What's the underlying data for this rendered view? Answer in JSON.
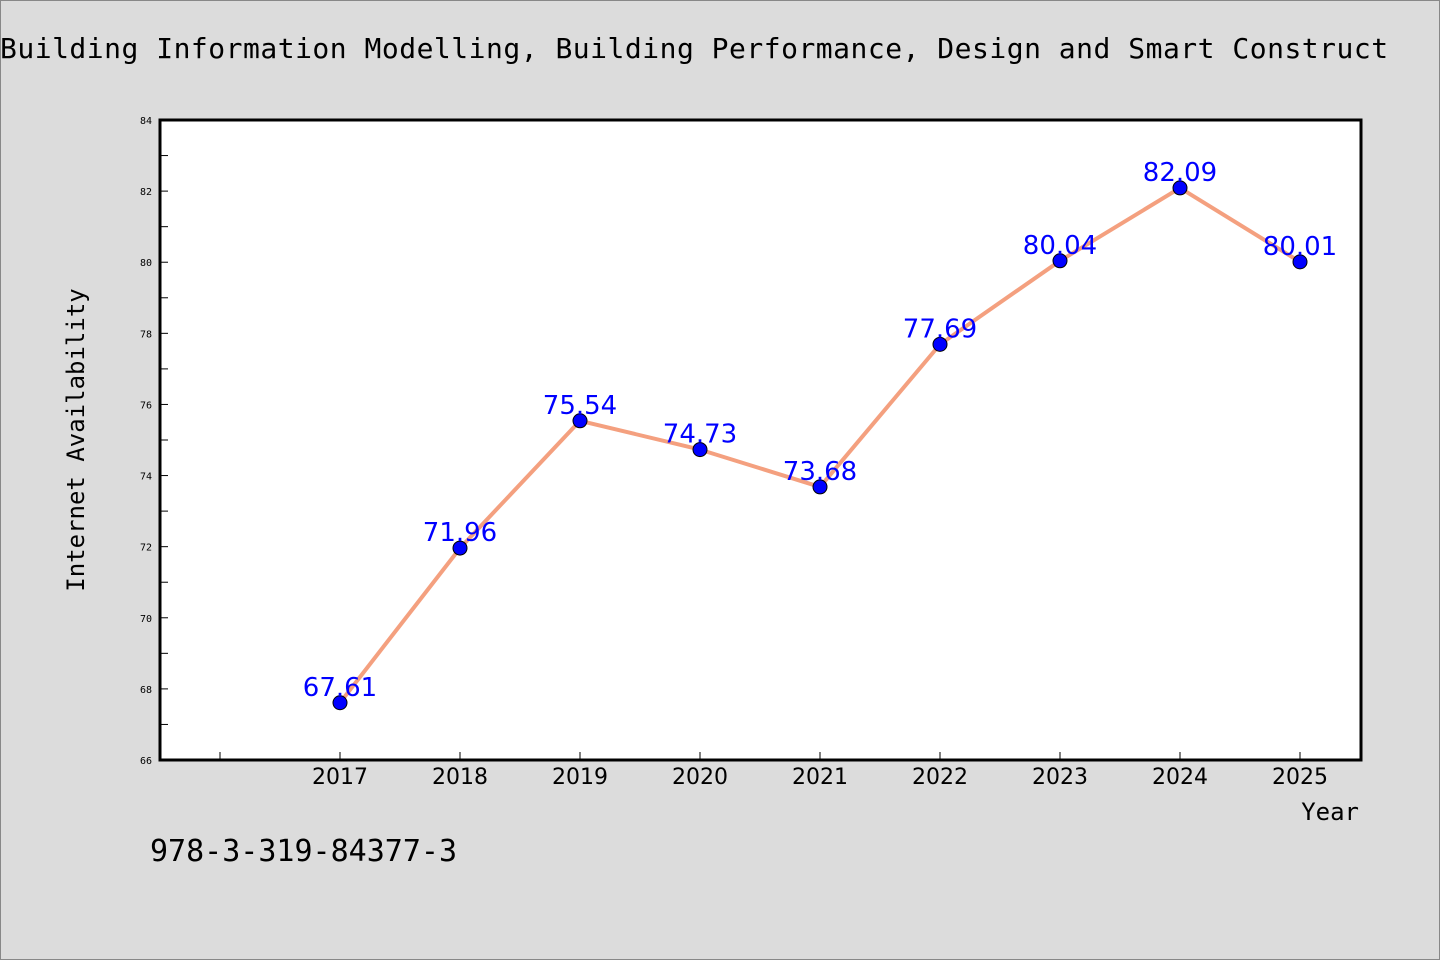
{
  "chart_data": {
    "type": "line",
    "title": "Building Information Modelling, Building Performance, Design and Smart Construct",
    "xlabel": "Year",
    "ylabel": "Internet Availability",
    "categories": [
      "2017",
      "2018",
      "2019",
      "2020",
      "2021",
      "2022",
      "2023",
      "2024",
      "2025"
    ],
    "series": [
      {
        "values": [
          67.61,
          71.96,
          75.54,
          74.73,
          73.68,
          77.69,
          80.04,
          82.09,
          80.01
        ],
        "data_labels": [
          "67.61",
          "71.96",
          "75.54",
          "74.73",
          "73.68",
          "77.69",
          "80.04",
          "82.09",
          "80.01"
        ],
        "line_color": "#f4a07f",
        "marker_color": "#0000ff",
        "label_color": "#0000ff"
      }
    ],
    "ylim": [
      66,
      84
    ],
    "yticks": [
      "66",
      "68",
      "70",
      "72",
      "74",
      "76",
      "78",
      "80",
      "82",
      "84"
    ],
    "grid": false,
    "legend": "none"
  },
  "footer": {
    "code": "978-3-319-84377-3"
  },
  "colors": {
    "background": "#dcdcdc",
    "plot_background": "#ffffff"
  }
}
